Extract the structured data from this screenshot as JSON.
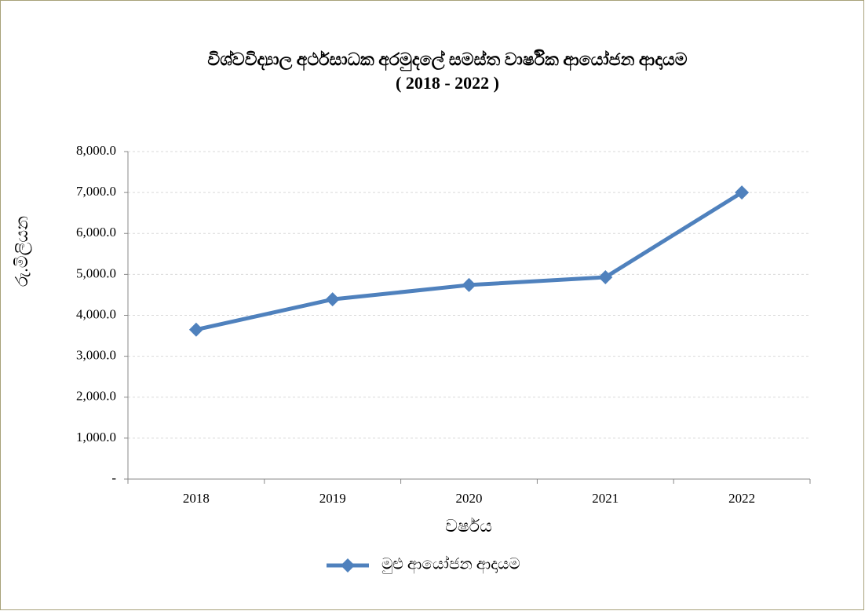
{
  "chart_data": {
    "type": "line",
    "title": "විශ්වවිද්‍යාල අර්ථසාධක අරමුදලේ සමස්ත වාර්ෂික ආයෝජන ආදායම",
    "subtitle": "( 2018 - 2022 )",
    "x_label": "වර්ෂය",
    "y_label": "රු.මිලියන",
    "categories": [
      "2018",
      "2019",
      "2020",
      "2021",
      "2022"
    ],
    "series": [
      {
        "name": "මුළු ආයෝජන ආදායම",
        "color": "#4f81bd",
        "values": [
          3650,
          4390,
          4740,
          4930,
          7000
        ]
      }
    ],
    "ylim": [
      0,
      8000
    ],
    "yticks": [
      {
        "value": 0,
        "label": "-"
      },
      {
        "value": 1000,
        "label": "1,000.0"
      },
      {
        "value": 2000,
        "label": "2,000.0"
      },
      {
        "value": 3000,
        "label": "3,000.0"
      },
      {
        "value": 4000,
        "label": "4,000.0"
      },
      {
        "value": 5000,
        "label": "5,000.0"
      },
      {
        "value": 6000,
        "label": "6,000.0"
      },
      {
        "value": 7000,
        "label": "7,000.0"
      },
      {
        "value": 8000,
        "label": "8,000.0"
      }
    ],
    "grid": true,
    "legend": "bottom"
  }
}
